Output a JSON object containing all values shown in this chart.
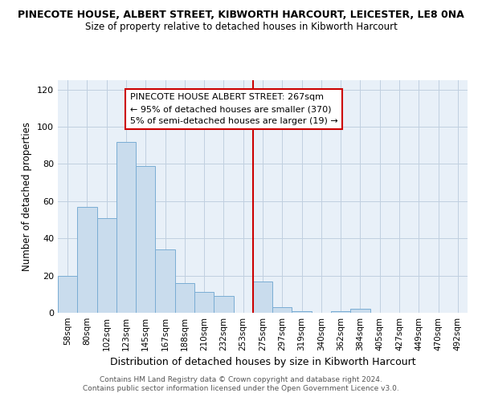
{
  "title": "PINECOTE HOUSE, ALBERT STREET, KIBWORTH HARCOURT, LEICESTER, LE8 0NA",
  "subtitle": "Size of property relative to detached houses in Kibworth Harcourt",
  "xlabel": "Distribution of detached houses by size in Kibworth Harcourt",
  "ylabel": "Number of detached properties",
  "categories": [
    "58sqm",
    "80sqm",
    "102sqm",
    "123sqm",
    "145sqm",
    "167sqm",
    "188sqm",
    "210sqm",
    "232sqm",
    "253sqm",
    "275sqm",
    "297sqm",
    "319sqm",
    "340sqm",
    "362sqm",
    "384sqm",
    "405sqm",
    "427sqm",
    "449sqm",
    "470sqm",
    "492sqm"
  ],
  "values": [
    20,
    57,
    51,
    92,
    79,
    34,
    16,
    11,
    9,
    0,
    17,
    3,
    1,
    0,
    1,
    2,
    0,
    0,
    0,
    0,
    0
  ],
  "bar_color": "#c9dced",
  "bar_edge_color": "#7aadd4",
  "red_line_index": 10,
  "annotation_text": [
    "PINECOTE HOUSE ALBERT STREET: 267sqm",
    "← 95% of detached houses are smaller (370)",
    "5% of semi-detached houses are larger (19) →"
  ],
  "annotation_box_color": "#ffffff",
  "annotation_box_edge": "#cc0000",
  "red_line_color": "#cc0000",
  "ylim": [
    0,
    125
  ],
  "yticks": [
    0,
    20,
    40,
    60,
    80,
    100,
    120
  ],
  "background_color": "#ffffff",
  "plot_bg_color": "#e8f0f8",
  "grid_color": "#c0cfe0",
  "footer_line1": "Contains HM Land Registry data © Crown copyright and database right 2024.",
  "footer_line2": "Contains public sector information licensed under the Open Government Licence v3.0."
}
